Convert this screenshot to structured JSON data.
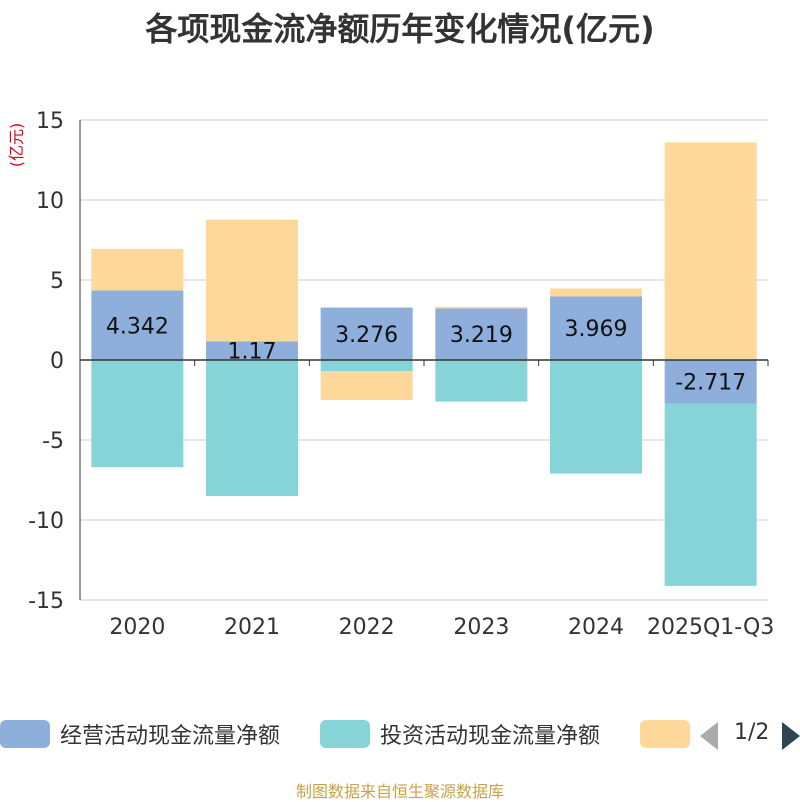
{
  "title": "各项现金流净额历年变化情况(亿元)",
  "source": "制图数据来自恒生聚源数据库",
  "legend": {
    "items": [
      {
        "label": "经营活动现金流量净额",
        "color": "#8eaedc"
      },
      {
        "label": "投资活动现金流量净额",
        "color": "#86d4d7"
      },
      {
        "label": "",
        "color": "#fdd89a"
      }
    ],
    "pager": "1/2"
  },
  "chart_data": {
    "type": "bar",
    "stacked": true,
    "categories": [
      "2020",
      "2021",
      "2022",
      "2023",
      "2024",
      "2025Q1-Q3"
    ],
    "ylabel": "(亿元)",
    "ylim": [
      -15,
      15
    ],
    "yticks": [
      "15",
      "10",
      "5",
      "0",
      "-5",
      "-10",
      "-15"
    ],
    "grid": true,
    "legend_position": "bottom",
    "series": [
      {
        "name": "经营活动现金流量净额",
        "color": "#8eaedc",
        "values": [
          4.342,
          1.17,
          3.276,
          3.219,
          3.969,
          -2.717
        ],
        "labels": [
          "4.342",
          "1.17",
          "3.276",
          "3.219",
          "3.969",
          "-2.717"
        ]
      },
      {
        "name": "投资活动现金流量净额",
        "color": "#86d4d7",
        "values": [
          -6.7,
          -8.5,
          -0.7,
          -2.6,
          -7.1,
          -11.4
        ]
      },
      {
        "color": "#fdd89a",
        "values": [
          2.6,
          7.6,
          -1.8,
          0.1,
          0.5,
          13.6
        ]
      }
    ]
  }
}
